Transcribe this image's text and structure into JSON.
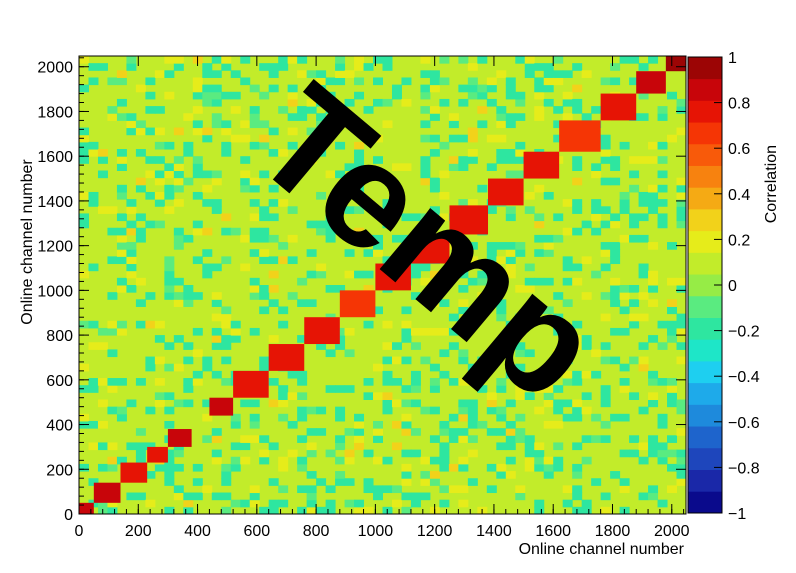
{
  "chart_data": {
    "type": "heatmap",
    "title": "",
    "xlabel": "Online channel number",
    "ylabel": "Online channel number",
    "colorbar_label": "Correlation",
    "xlim": [
      0,
      2048
    ],
    "ylim": [
      0,
      2048
    ],
    "zlim": [
      -1,
      1
    ],
    "x_ticks": [
      0,
      200,
      400,
      600,
      800,
      1000,
      1200,
      1400,
      1600,
      1800,
      2000
    ],
    "y_ticks": [
      0,
      200,
      400,
      600,
      800,
      1000,
      1200,
      1400,
      1600,
      1800,
      2000
    ],
    "colorbar_ticks": [
      "1",
      "0.8",
      "0.6",
      "0.4",
      "0.2",
      "0",
      "−0.2",
      "−0.4",
      "−0.6",
      "−0.8",
      "−1"
    ],
    "colorbar_tick_values": [
      1,
      0.8,
      0.6,
      0.4,
      0.2,
      0,
      -0.2,
      -0.4,
      -0.6,
      -0.8,
      -1
    ],
    "palette": [
      "#0a0a8c",
      "#1a28a8",
      "#1e46bc",
      "#1e64cc",
      "#1e8adc",
      "#1eaaea",
      "#1ecff0",
      "#1ee6c8",
      "#2ee6a0",
      "#5aeb80",
      "#96ec46",
      "#c2ec2a",
      "#e6ec1a",
      "#f2d21a",
      "#f5aa14",
      "#f7820f",
      "#f85a0a",
      "#f53505",
      "#e61405",
      "#c8050a",
      "#9c0505"
    ],
    "background_value": 0.05,
    "diagonal_blocks": [
      {
        "start": 0,
        "end": 50,
        "value": 0.9
      },
      {
        "start": 50,
        "end": 140,
        "value": 0.85
      },
      {
        "start": 140,
        "end": 230,
        "value": 0.8
      },
      {
        "start": 230,
        "end": 300,
        "value": 0.75
      },
      {
        "start": 300,
        "end": 380,
        "value": 0.85
      },
      {
        "start": 440,
        "end": 520,
        "value": 0.9
      },
      {
        "start": 520,
        "end": 640,
        "value": 0.75
      },
      {
        "start": 640,
        "end": 760,
        "value": 0.8
      },
      {
        "start": 760,
        "end": 880,
        "value": 0.75
      },
      {
        "start": 880,
        "end": 1000,
        "value": 0.7
      },
      {
        "start": 1000,
        "end": 1120,
        "value": 0.75
      },
      {
        "start": 1120,
        "end": 1250,
        "value": 0.8
      },
      {
        "start": 1250,
        "end": 1380,
        "value": 0.8
      },
      {
        "start": 1380,
        "end": 1500,
        "value": 0.75
      },
      {
        "start": 1500,
        "end": 1620,
        "value": 0.75
      },
      {
        "start": 1620,
        "end": 1760,
        "value": 0.7
      },
      {
        "start": 1760,
        "end": 1880,
        "value": 0.8
      },
      {
        "start": 1880,
        "end": 1980,
        "value": 0.85
      },
      {
        "start": 1980,
        "end": 2048,
        "value": 0.95
      }
    ],
    "watermark": "Temp"
  }
}
